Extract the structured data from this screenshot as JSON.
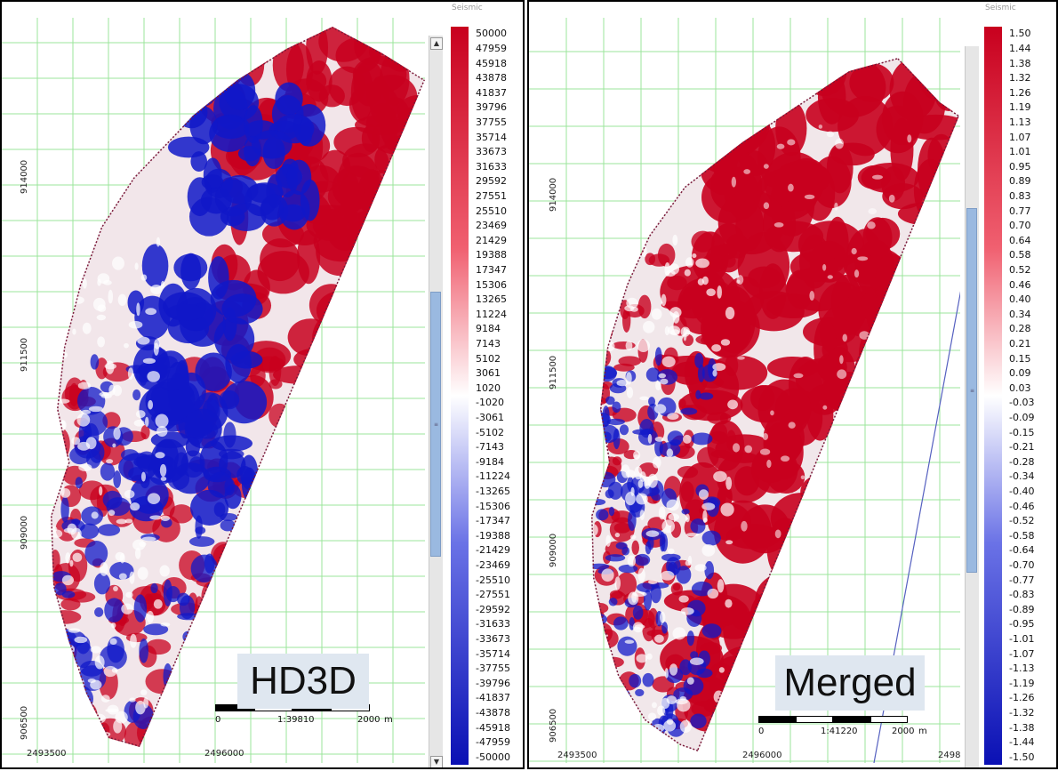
{
  "panels": [
    {
      "id": "left",
      "tag": "HD3D",
      "y_ticks": [
        "914000",
        "911500",
        "909000",
        "906500"
      ],
      "x_ticks": [
        "2493500",
        "2496000"
      ],
      "scalebar": {
        "start": "0",
        "ratio": "1:39810",
        "end": "2000",
        "unit": "m"
      },
      "colorbar_title": "Seismic",
      "colorbar_labels": [
        "50000",
        "47959",
        "45918",
        "43878",
        "41837",
        "39796",
        "37755",
        "35714",
        "33673",
        "31633",
        "29592",
        "27551",
        "25510",
        "23469",
        "21429",
        "19388",
        "17347",
        "15306",
        "13265",
        "11224",
        "9184",
        "7143",
        "5102",
        "3061",
        "1020",
        "-1020",
        "-3061",
        "-5102",
        "-7143",
        "-9184",
        "-11224",
        "-13265",
        "-15306",
        "-17347",
        "-19388",
        "-21429",
        "-23469",
        "-25510",
        "-27551",
        "-29592",
        "-31633",
        "-33673",
        "-35714",
        "-37755",
        "-39796",
        "-41837",
        "-43878",
        "-45918",
        "-47959",
        "-50000"
      ]
    },
    {
      "id": "right",
      "tag": "Merged",
      "y_ticks": [
        "914000",
        "911500",
        "909000",
        "906500"
      ],
      "x_ticks": [
        "2493500",
        "2496000",
        "2498"
      ],
      "scalebar": {
        "start": "0",
        "ratio": "1:41220",
        "end": "2000",
        "unit": "m"
      },
      "colorbar_title": "Seismic",
      "colorbar_labels": [
        "1.50",
        "1.44",
        "1.38",
        "1.32",
        "1.26",
        "1.19",
        "1.13",
        "1.07",
        "1.01",
        "0.95",
        "0.89",
        "0.83",
        "0.77",
        "0.70",
        "0.64",
        "0.58",
        "0.52",
        "0.46",
        "0.40",
        "0.34",
        "0.28",
        "0.21",
        "0.15",
        "0.09",
        "0.03",
        "-0.03",
        "-0.09",
        "-0.15",
        "-0.21",
        "-0.28",
        "-0.34",
        "-0.40",
        "-0.46",
        "-0.52",
        "-0.58",
        "-0.64",
        "-0.70",
        "-0.77",
        "-0.83",
        "-0.89",
        "-0.95",
        "-1.01",
        "-1.07",
        "-1.13",
        "-1.19",
        "-1.26",
        "-1.32",
        "-1.38",
        "-1.44",
        "-1.50"
      ]
    }
  ],
  "colors": {
    "grid": "#9be69b",
    "positive": "#c8001e",
    "negative": "#1018c8",
    "scroll_thumb": "#9ab9e0"
  },
  "icons": {
    "scroll_up": "chevron-up-icon",
    "scroll_down": "chevron-down-icon"
  }
}
